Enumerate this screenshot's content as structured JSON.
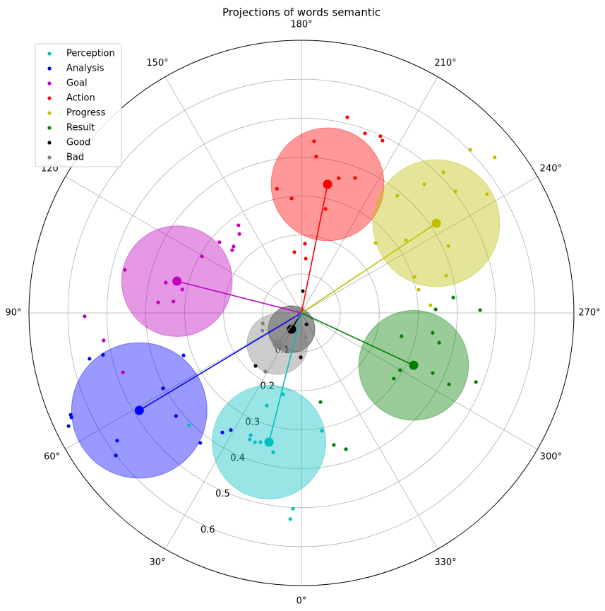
{
  "chart_data": {
    "type": "polar_scatter",
    "title": "Projections of words semantic",
    "rlim": [
      0,
      0.7
    ],
    "rticks": [
      0.1,
      0.2,
      0.3,
      0.4,
      0.5,
      0.6
    ],
    "thetaticks": [
      {
        "value": 0,
        "label": "0°"
      },
      {
        "value": 30,
        "label": "30°"
      },
      {
        "value": 60,
        "label": "60°"
      },
      {
        "value": 90,
        "label": "90°"
      },
      {
        "value": 120,
        "label": "120°"
      },
      {
        "value": 150,
        "label": "150°"
      },
      {
        "value": 180,
        "label": "180°"
      },
      {
        "value": 210,
        "label": "210°"
      },
      {
        "value": 240,
        "label": "240°"
      },
      {
        "value": 270,
        "label": "270°"
      },
      {
        "value": 300,
        "label": "300°"
      },
      {
        "value": 330,
        "label": "330°"
      }
    ],
    "theta_zero": "S",
    "theta_direction": "clockwise",
    "grid": true,
    "legend": "upper left",
    "series": [
      {
        "name": "Perception",
        "color": "#00bfbf",
        "theta": [
          12.7,
          20.5,
          350.1,
          22.6,
          22.2,
          19.8,
          17.6,
          11.5,
          45,
          2.5,
          3.1
        ],
        "r": [
          0.214,
          0.254,
          0.307,
          0.34,
          0.351,
          0.353,
          0.348,
          0.365,
          0.408,
          0.503,
          0.53
        ],
        "centroid_theta": 14.1,
        "centroid_r": 0.342,
        "radius": 0.146
      },
      {
        "name": "Analysis",
        "color": "#0000ff",
        "theta": [
          66.2,
          65.6,
          64.1,
          77.8,
          78.1,
          70.2,
          61.4,
          50.6,
          37.9,
          55.3,
          52.5,
          33.5,
          31.1
        ],
        "r": [
          0.648,
          0.649,
          0.665,
          0.557,
          0.521,
          0.322,
          0.405,
          0.417,
          0.423,
          0.576,
          0.601,
          0.368,
          0.351
        ],
        "centroid_theta": 59.0,
        "centroid_r": 0.486,
        "radius": 0.174
      },
      {
        "name": "Goal",
        "color": "#bf00bf",
        "theta": [
          144.3,
          141.8,
          130.8,
          134.4,
          132.2,
          119.6,
          103.7,
          102.6,
          101.1,
          95.1,
          94.2,
          89.1,
          82.1,
          71.6
        ],
        "r": [
          0.277,
          0.258,
          0.278,
          0.244,
          0.24,
          0.294,
          0.467,
          0.357,
          0.312,
          0.33,
          0.369,
          0.557,
          0.513,
          0.483
        ],
        "centroid_theta": 104.3,
        "centroid_r": 0.33,
        "radius": 0.142
      },
      {
        "name": "Action",
        "color": "#ff0000",
        "theta": [
          193.2,
          199.5,
          204.1,
          205.2,
          184.2,
          185.4,
          168.8,
          175.1,
          195.5,
          201.7,
          193.0,
          182.9,
          173.4,
          184.5
        ],
        "r": [
          0.516,
          0.489,
          0.497,
          0.489,
          0.442,
          0.403,
          0.325,
          0.295,
          0.359,
          0.373,
          0.274,
          0.178,
          0.157,
          0.14
        ],
        "centroid_theta": 191.5,
        "centroid_r": 0.337,
        "radius": 0.145
      },
      {
        "name": "Progress",
        "color": "#bfbf00",
        "theta": [
          226.0,
          231.2,
          225.3,
          223.7,
          231.7,
          237.4,
          219.3,
          235.2,
          226.7,
          245.5,
          252.3,
          255.5,
          258.8,
          266.6
        ],
        "r": [
          0.603,
          0.637,
          0.513,
          0.457,
          0.504,
          0.566,
          0.389,
          0.327,
          0.262,
          0.415,
          0.305,
          0.384,
          0.307,
          0.332
        ],
        "centroid_theta": 236.4,
        "centroid_r": 0.416,
        "radius": 0.163
      },
      {
        "name": "Result",
        "color": "#008000",
        "theta": [
          264.2,
          268.5,
          269.1,
          283.1,
          278.6,
          282.2,
          300.1,
          305.4,
          294.6,
          295.8,
          291.6,
          347.9,
          346.2,
          341.9
        ],
        "r": [
          0.392,
          0.345,
          0.459,
          0.264,
          0.341,
          0.362,
          0.293,
          0.291,
          0.371,
          0.421,
          0.482,
          0.234,
          0.349,
          0.368
        ],
        "centroid_theta": 295.0,
        "centroid_r": 0.318,
        "radius": 0.141
      },
      {
        "name": "Good",
        "color": "#000000",
        "theta": [
          183.7,
          336.4,
          0.9,
          40.9
        ],
        "r": [
          0.056,
          0.032,
          0.114,
          0.18
        ],
        "centroid_theta": 31.3,
        "centroid_r": 0.049,
        "radius": 0.06
      },
      {
        "name": "Bad",
        "color": "#808080",
        "theta": [
          74.7,
          65.6,
          31.6,
          350.3
        ],
        "r": [
          0.103,
          0.11,
          0.177,
          0.064
        ],
        "centroid_theta": 37.7,
        "centroid_r": 0.101,
        "radius": 0.078
      }
    ]
  }
}
